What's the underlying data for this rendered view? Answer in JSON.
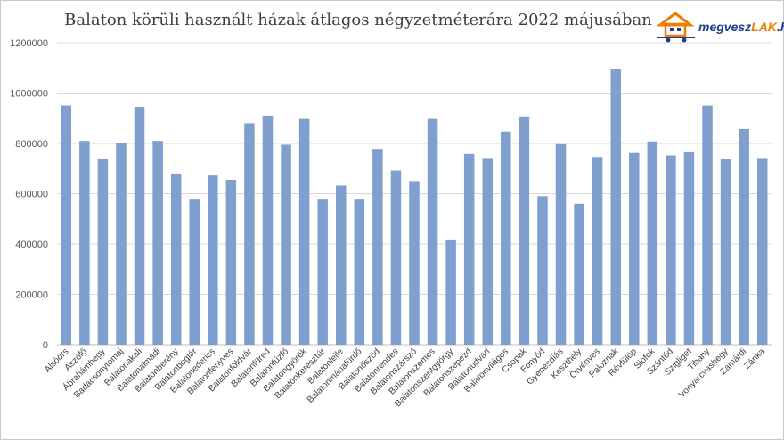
{
  "chart_data": {
    "type": "bar",
    "title": "Balaton körüli használt házak átlagos négyzetméterára 2022 májusában",
    "xlabel": "",
    "ylabel": "",
    "ylim": [
      0,
      1200000
    ],
    "yticks": [
      0,
      200000,
      400000,
      600000,
      800000,
      1000000,
      1200000
    ],
    "grid": true,
    "bar_color": "#7f9fcf",
    "categories": [
      "Alsóörs",
      "Aszófő",
      "Ábrahámhegy",
      "Badacsonytomaj",
      "Balatonakali",
      "Balatonalmádi",
      "Balatonberény",
      "Balatonboglár",
      "Balatonederics",
      "Balatonfenyves",
      "Balatonföldvár",
      "Balatonfüred",
      "Balatonfűzfő",
      "Balatongyörök",
      "Balatonkeresztúr",
      "Balatonlelle",
      "Balatonmáriafürdő",
      "Balatonőszöd",
      "Balatonrendes",
      "Balatonszárszó",
      "Balatonszemes",
      "Balatonszentgyörgy",
      "Balatonszepezd",
      "Balatonudvari",
      "Balatonvilágos",
      "Csopak",
      "Fonyód",
      "Gyenesdiás",
      "Keszthely",
      "Örvényes",
      "Paloznak",
      "Révfülöp",
      "Siófok",
      "Szántód",
      "Szigliget",
      "Tihany",
      "Vonyarcvashegy",
      "Zamárdi",
      "Zánka"
    ],
    "values": [
      950000,
      810000,
      740000,
      800000,
      945000,
      810000,
      680000,
      580000,
      672000,
      655000,
      880000,
      910000,
      795000,
      897000,
      580000,
      632000,
      580000,
      778000,
      692000,
      650000,
      897000,
      418000,
      758000,
      742000,
      847000,
      907000,
      590000,
      797000,
      560000,
      746000,
      1097000,
      762000,
      808000,
      752000,
      765000,
      950000,
      738000,
      857000,
      742000
    ]
  },
  "logo": {
    "part1": "megvesz",
    "part2": "LAK",
    "part3": ".hu"
  }
}
